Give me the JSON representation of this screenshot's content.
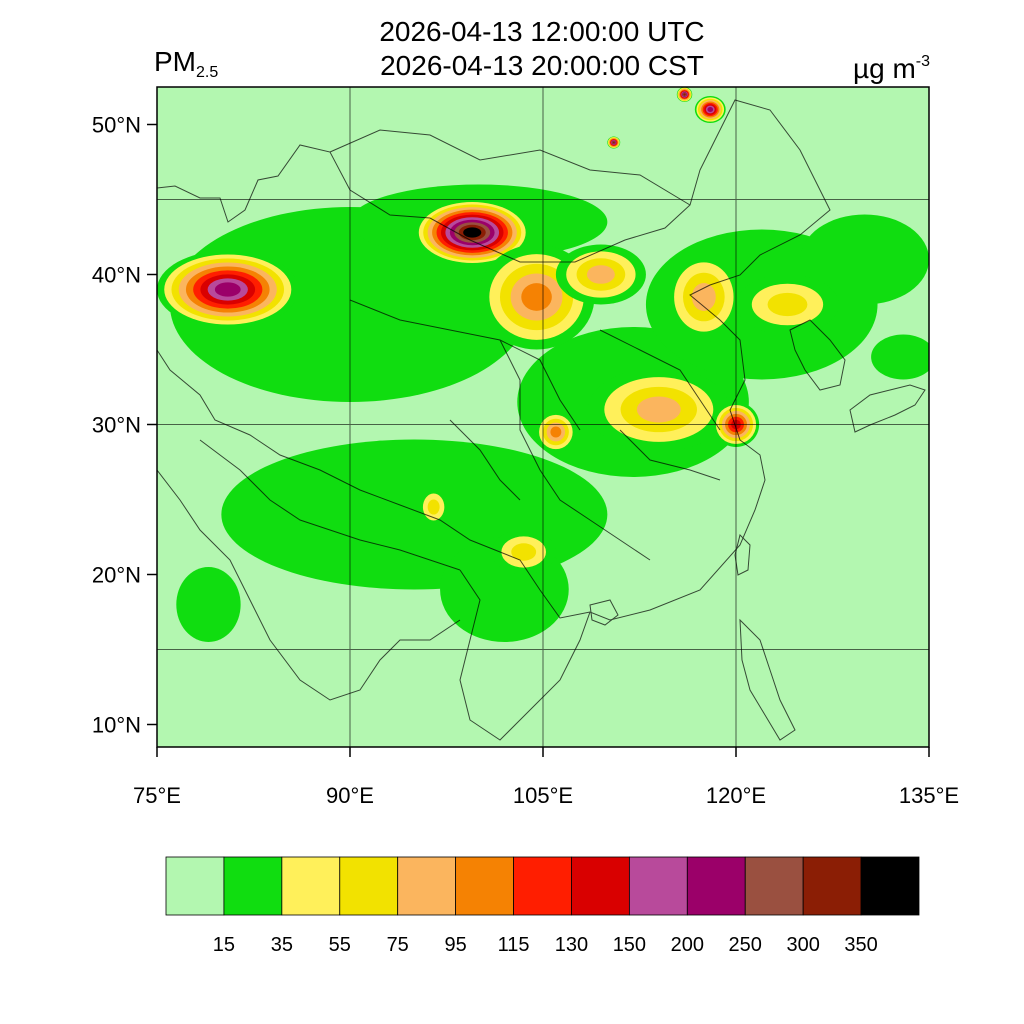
{
  "title": {
    "utc": "2026-04-13 12:00:00 UTC",
    "cst": "2026-04-13 20:00:00 CST"
  },
  "variable": {
    "main": "PM",
    "sub": "2.5"
  },
  "units": {
    "main": "µg m",
    "sup": "-3"
  },
  "map": {
    "background_color": "#b3f7b0",
    "extent": {
      "lon": [
        75,
        135
      ],
      "lat": [
        8.5,
        52.5
      ]
    },
    "gridlines": {
      "lon": [
        90,
        105,
        120
      ],
      "lat": [
        15,
        30,
        45
      ]
    },
    "lon_ticks": [
      {
        "value": 75,
        "label": "75°E"
      },
      {
        "value": 90,
        "label": "90°E"
      },
      {
        "value": 105,
        "label": "105°E"
      },
      {
        "value": 120,
        "label": "120°E"
      },
      {
        "value": 135,
        "label": "135°E"
      }
    ],
    "lat_ticks": [
      {
        "value": 10,
        "label": "10°N"
      },
      {
        "value": 20,
        "label": "20°N"
      },
      {
        "value": 30,
        "label": "30°N"
      },
      {
        "value": 40,
        "label": "40°N"
      },
      {
        "value": 50,
        "label": "50°N"
      }
    ],
    "plumes": [
      {
        "lon": 80.5,
        "lat": 39.0,
        "rx": 5.5,
        "ry": 2.6,
        "peak_level": 9
      },
      {
        "lon": 99.5,
        "lat": 42.8,
        "rx": 4.5,
        "ry": 2.2,
        "peak_level": 12
      },
      {
        "lon": 104.5,
        "lat": 38.5,
        "rx": 4.5,
        "ry": 3.5,
        "peak_level": 5
      },
      {
        "lon": 109.5,
        "lat": 40.0,
        "rx": 3.5,
        "ry": 2.0,
        "peak_level": 4
      },
      {
        "lon": 114.0,
        "lat": 31.0,
        "rx": 5.5,
        "ry": 2.8,
        "peak_level": 4
      },
      {
        "lon": 120.0,
        "lat": 30.0,
        "rx": 1.8,
        "ry": 1.5,
        "peak_level": 7
      },
      {
        "lon": 106.0,
        "lat": 29.5,
        "rx": 1.6,
        "ry": 1.4,
        "peak_level": 5
      },
      {
        "lon": 117.5,
        "lat": 38.5,
        "rx": 3.0,
        "ry": 3.0,
        "peak_level": 4
      },
      {
        "lon": 124.0,
        "lat": 38.0,
        "rx": 4.0,
        "ry": 2.0,
        "peak_level": 3
      },
      {
        "lon": 103.5,
        "lat": 21.5,
        "rx": 2.5,
        "ry": 1.5,
        "peak_level": 3
      },
      {
        "lon": 96.5,
        "lat": 24.5,
        "rx": 1.2,
        "ry": 1.3,
        "peak_level": 3
      },
      {
        "lon": 118.0,
        "lat": 51.0,
        "rx": 1.2,
        "ry": 0.9,
        "peak_level": 9
      },
      {
        "lon": 116.0,
        "lat": 52.0,
        "rx": 0.6,
        "ry": 0.5,
        "peak_level": 11
      },
      {
        "lon": 110.5,
        "lat": 48.8,
        "rx": 0.5,
        "ry": 0.4,
        "peak_level": 11
      }
    ],
    "green_zones": [
      {
        "lon": 90.0,
        "lat": 38.0,
        "rx": 14.0,
        "ry": 6.5
      },
      {
        "lon": 95.0,
        "lat": 24.0,
        "rx": 15.0,
        "ry": 5.0
      },
      {
        "lon": 112.0,
        "lat": 31.5,
        "rx": 9.0,
        "ry": 5.0
      },
      {
        "lon": 122.0,
        "lat": 38.0,
        "rx": 9.0,
        "ry": 5.0
      },
      {
        "lon": 102.0,
        "lat": 19.0,
        "rx": 5.0,
        "ry": 3.5
      },
      {
        "lon": 130.0,
        "lat": 41.0,
        "rx": 5.0,
        "ry": 3.0
      },
      {
        "lon": 100.0,
        "lat": 43.5,
        "rx": 10.0,
        "ry": 2.5
      },
      {
        "lon": 79.0,
        "lat": 18.0,
        "rx": 2.5,
        "ry": 2.5
      },
      {
        "lon": 133.0,
        "lat": 34.5,
        "rx": 2.5,
        "ry": 1.5
      }
    ]
  },
  "colorbar": {
    "colors": [
      "#b3f7b0",
      "#10dd10",
      "#fff05a",
      "#f2e200",
      "#fbb55e",
      "#f58203",
      "#ff1e00",
      "#d90000",
      "#b84a9b",
      "#9b0069",
      "#9a5040",
      "#8b1e05",
      "#000000"
    ],
    "labels": [
      "15",
      "35",
      "55",
      "75",
      "95",
      "115",
      "130",
      "150",
      "200",
      "250",
      "300",
      "350"
    ]
  }
}
